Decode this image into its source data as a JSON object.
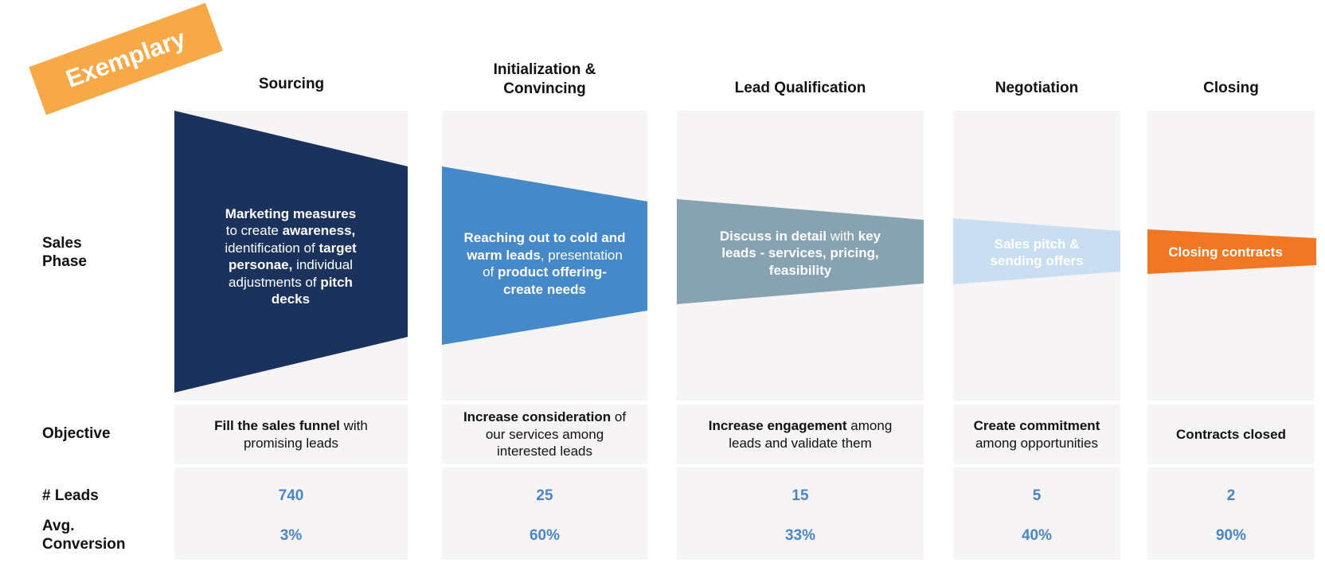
{
  "badge": "Exemplary",
  "headers": {
    "sourcing": "Sourcing",
    "initialization_line1": "Initialization &",
    "initialization_line2": "Convincing",
    "lead_qualification": "Lead Qualification",
    "negotiation": "Negotiation",
    "closing": "Closing"
  },
  "row_labels": {
    "sales_phase_line1": "Sales",
    "sales_phase_line2": "Phase",
    "objective": "Objective",
    "leads": "# Leads",
    "avg_conversion_line1": "Avg.",
    "avg_conversion_line2": "Conversion"
  },
  "phases": {
    "sourcing": {
      "line1": "Marketing measures",
      "line2a": "to create ",
      "line2b": "awareness,",
      "line3a": "identification of ",
      "line3b": "target",
      "line4a": "personae,",
      "line4b": " individual",
      "line5a": "adjustments of ",
      "line5b": "pitch",
      "line6": "decks",
      "color": "#1b325c"
    },
    "initialization": {
      "line1": "Reaching out to cold and",
      "line2a": "warm leads",
      "line2b": ", presentation",
      "line3a": "of ",
      "line3b": "product offering-",
      "line4": "create needs",
      "color": "#4589c8"
    },
    "lead_qualification": {
      "line1a": "Discuss in detail",
      "line1b": " with ",
      "line1c": "key",
      "line2": "leads - services, pricing,",
      "line3": "feasibility",
      "color": "#87a2b1"
    },
    "negotiation": {
      "line1": "Sales pitch &",
      "line2": "sending offers",
      "color": "#c9dff1"
    },
    "closing": {
      "line1": "Closing contracts",
      "color": "#f07825"
    }
  },
  "objectives": {
    "sourcing": {
      "bold": "Fill the sales funnel",
      "rest1": " with",
      "line2": "promising leads"
    },
    "initialization": {
      "bold": "Increase consideration",
      "rest1": " of",
      "line2": "our services among",
      "line3": "interested leads"
    },
    "lead_qualification": {
      "bold": "Increase engagement",
      "rest1": " among",
      "line2": "leads and validate them"
    },
    "negotiation": {
      "bold": "Create commitment",
      "line2": "among opportunities"
    },
    "closing": {
      "bold": "Contracts closed"
    }
  },
  "leads": {
    "sourcing": "740",
    "initialization": "25",
    "lead_qualification": "15",
    "negotiation": "5",
    "closing": "2"
  },
  "conversion": {
    "sourcing": "3%",
    "initialization": "60%",
    "lead_qualification": "33%",
    "negotiation": "40%",
    "closing": "90%"
  },
  "colors": {
    "panel": "#f6f4f5",
    "metric": "#4a86c5",
    "badge": "#f6a946"
  }
}
